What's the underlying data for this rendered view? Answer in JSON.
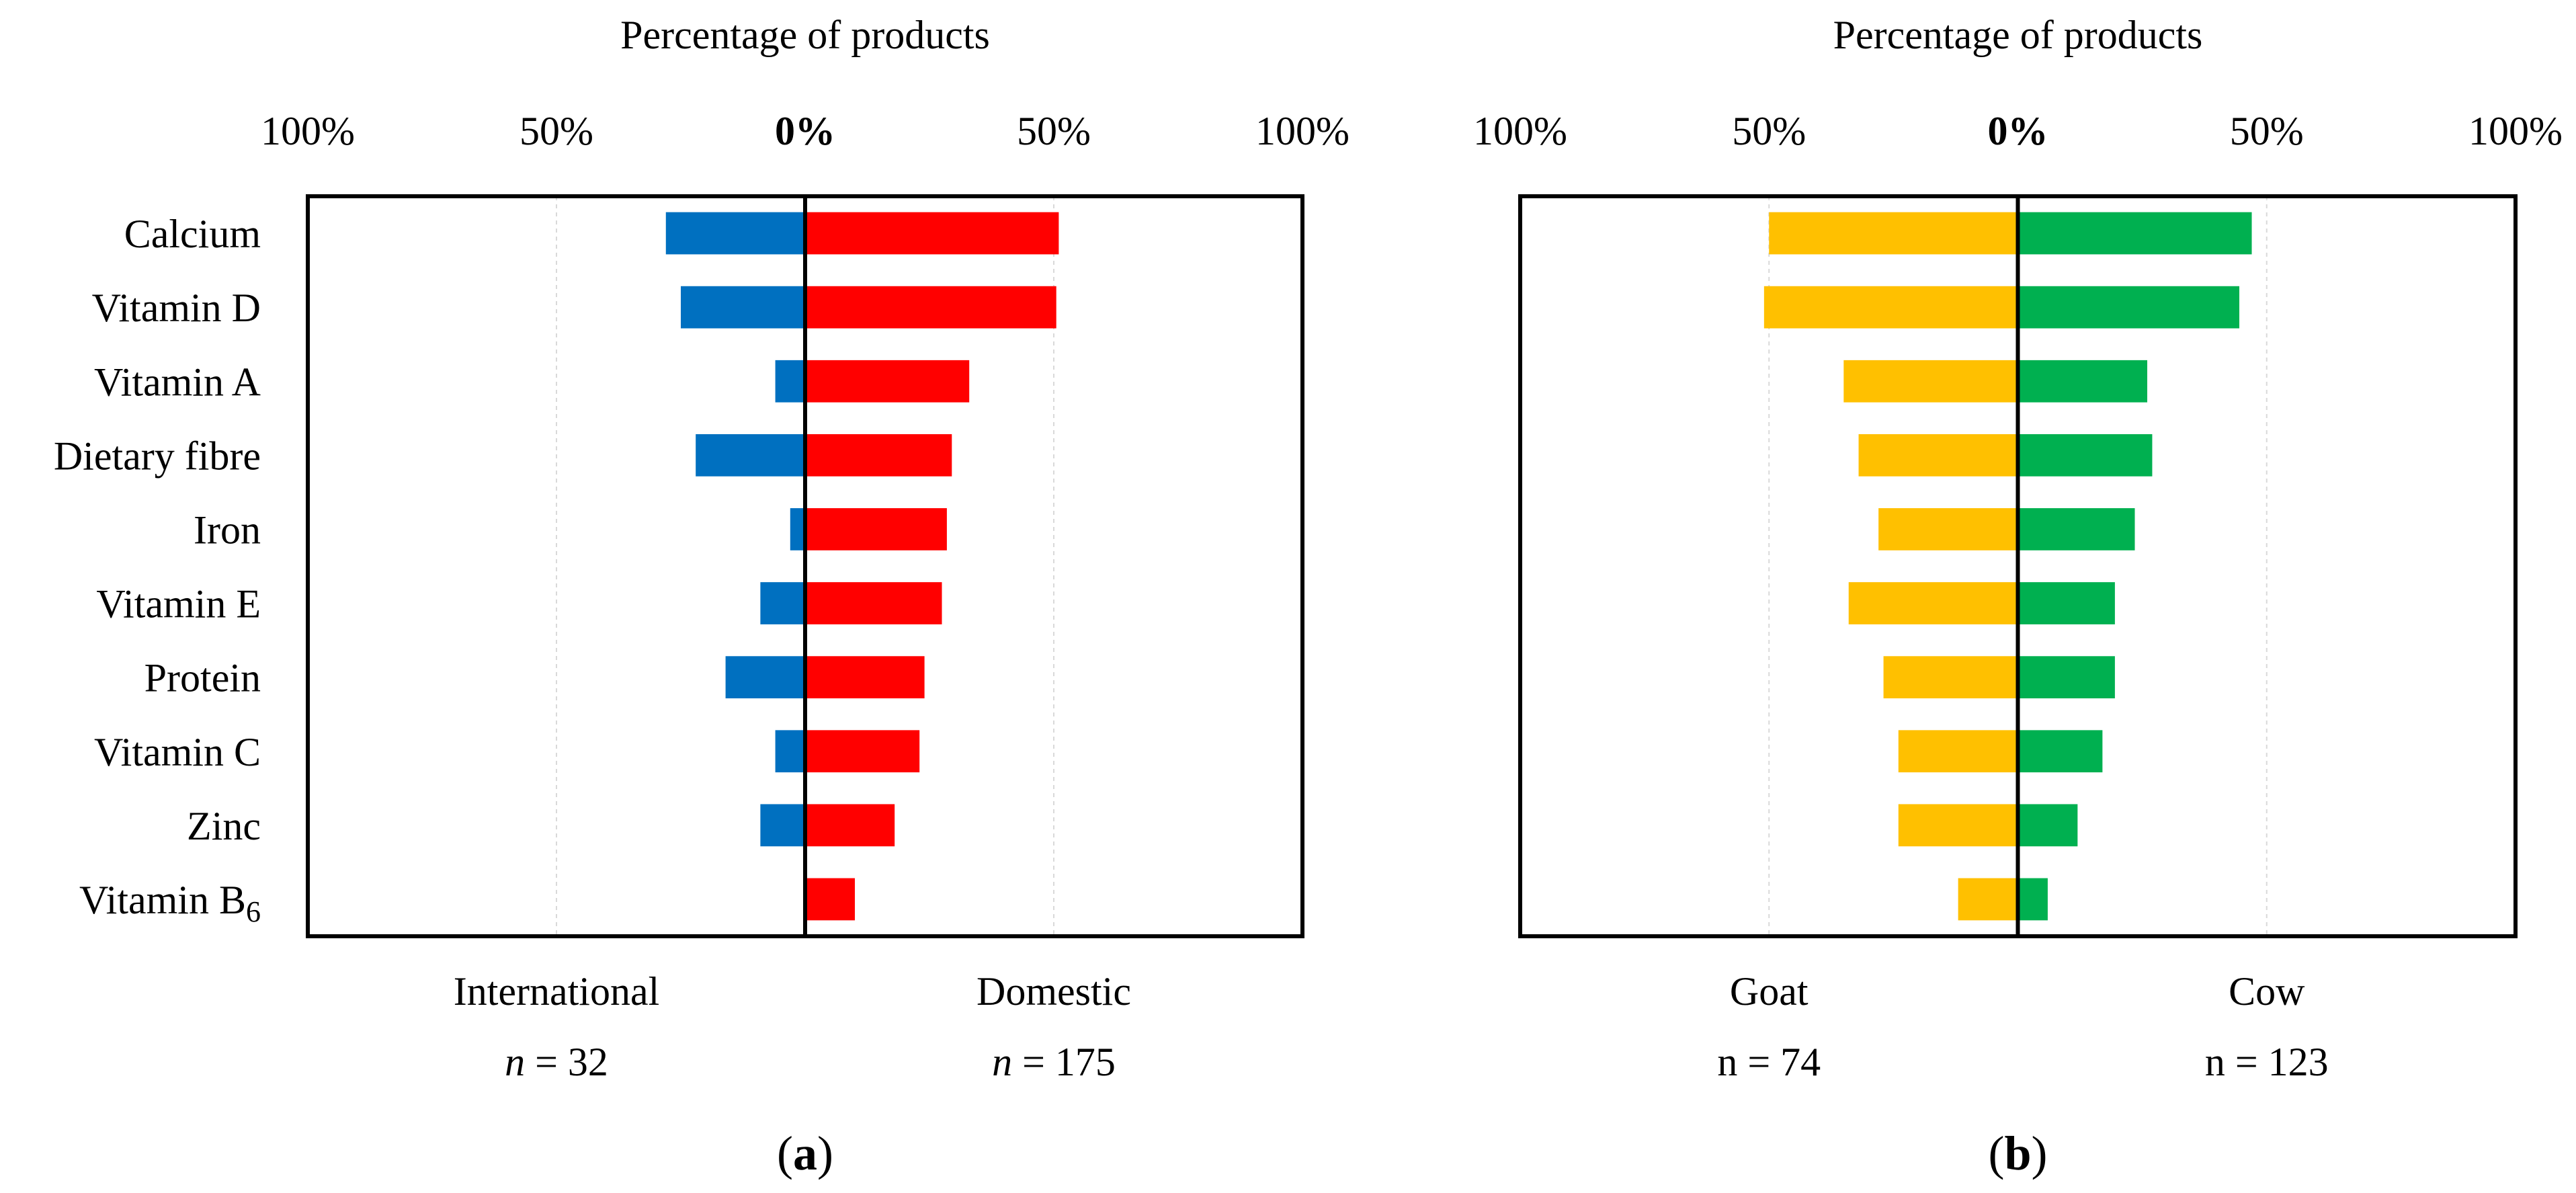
{
  "chart_data": [
    {
      "type": "bar",
      "orientation": "diverging-horizontal",
      "panel_label": "a",
      "title": "Percentage of products",
      "xlim": [
        -100,
        100
      ],
      "ticks": [
        "100%",
        "50%",
        "0%",
        "50%",
        "100%"
      ],
      "categories": [
        "Calcium",
        "Vitamin D",
        "Vitamin A",
        "Dietary fibre",
        "Iron",
        "Vitamin E",
        "Protein",
        "Vitamin C",
        "Zinc",
        "Vitamin B6"
      ],
      "series": [
        {
          "name": "International",
          "n_label": "n",
          "n_value": "= 32",
          "side": "left",
          "color": "#0070C0",
          "values": [
            28,
            25,
            6,
            22,
            3,
            9,
            16,
            6,
            9,
            0
          ]
        },
        {
          "name": "Domestic",
          "n_label": "n",
          "n_value": "= 175",
          "side": "right",
          "color": "#FF0000",
          "values": [
            51,
            50.5,
            33,
            29.5,
            28.5,
            27.5,
            24,
            23,
            18,
            10
          ]
        }
      ]
    },
    {
      "type": "bar",
      "orientation": "diverging-horizontal",
      "panel_label": "b",
      "title": "Percentage of products",
      "xlim": [
        -100,
        100
      ],
      "ticks": [
        "100%",
        "50%",
        "0%",
        "50%",
        "100%"
      ],
      "categories": [
        "Calcium",
        "Vitamin D",
        "Vitamin A",
        "Dietary fibre",
        "Iron",
        "Vitamin E",
        "Protein",
        "Vitamin C",
        "Zinc",
        "Vitamin B6"
      ],
      "series": [
        {
          "name": "Goat",
          "n_label": "n",
          "n_value": "= 74",
          "side": "left",
          "color": "#FFC000",
          "values": [
            50,
            51,
            35,
            32,
            28,
            34,
            27,
            24,
            24,
            12
          ]
        },
        {
          "name": "Cow",
          "n_label": "n",
          "n_value": "= 123",
          "side": "right",
          "color": "#00B050",
          "values": [
            47,
            44.5,
            26,
            27,
            23.5,
            19.5,
            19.5,
            17,
            12,
            6
          ]
        }
      ]
    }
  ]
}
